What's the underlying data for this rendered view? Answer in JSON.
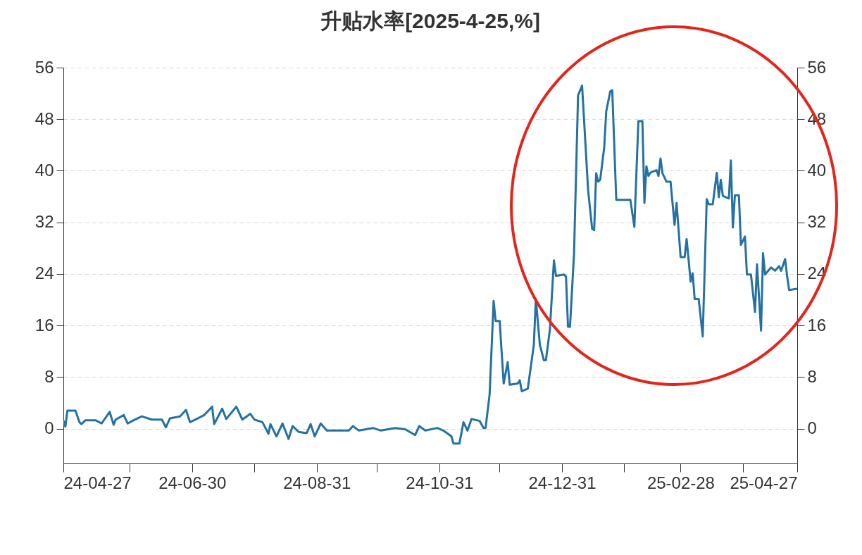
{
  "chart_data": {
    "type": "line",
    "title": "升贴水率[2025-4-25,%]",
    "x": [
      "2024-04-27",
      "2024-04-28",
      "2024-04-29",
      "2024-05-03",
      "2024-05-05",
      "2024-05-06",
      "2024-05-08",
      "2024-05-13",
      "2024-05-16",
      "2024-05-20",
      "2024-05-22",
      "2024-05-23",
      "2024-05-27",
      "2024-05-29",
      "2024-06-01",
      "2024-06-05",
      "2024-06-10",
      "2024-06-15",
      "2024-06-17",
      "2024-06-19",
      "2024-06-24",
      "2024-06-27",
      "2024-06-29",
      "2024-07-03",
      "2024-07-06",
      "2024-07-10",
      "2024-07-11",
      "2024-07-15",
      "2024-07-17",
      "2024-07-22",
      "2024-07-25",
      "2024-07-29",
      "2024-07-31",
      "2024-08-04",
      "2024-08-07",
      "2024-08-08",
      "2024-08-11",
      "2024-08-14",
      "2024-08-17",
      "2024-08-19",
      "2024-08-22",
      "2024-08-26",
      "2024-08-28",
      "2024-08-30",
      "2024-09-02",
      "2024-09-05",
      "2024-09-09",
      "2024-09-16",
      "2024-09-18",
      "2024-09-21",
      "2024-09-28",
      "2024-10-02",
      "2024-10-09",
      "2024-10-14",
      "2024-10-19",
      "2024-10-21",
      "2024-10-24",
      "2024-10-30",
      "2024-11-02",
      "2024-11-06",
      "2024-11-07",
      "2024-11-10",
      "2024-11-12",
      "2024-11-14",
      "2024-11-16",
      "2024-11-20",
      "2024-11-22",
      "2024-11-23",
      "2024-11-25",
      "2024-11-27",
      "2024-11-28",
      "2024-11-30",
      "2024-12-02",
      "2024-12-04",
      "2024-12-05",
      "2024-12-09",
      "2024-12-10",
      "2024-12-11",
      "2024-12-14",
      "2024-12-17",
      "2024-12-18",
      "2024-12-20",
      "2024-12-22",
      "2024-12-23",
      "2024-12-25",
      "2024-12-27",
      "2024-12-28",
      "2025-01-01",
      "2025-01-02",
      "2025-01-03",
      "2025-01-04",
      "2025-01-06",
      "2025-01-08",
      "2025-01-10",
      "2025-01-13",
      "2025-01-15",
      "2025-01-16",
      "2025-01-17",
      "2025-01-18",
      "2025-01-19",
      "2025-01-21",
      "2025-01-22",
      "2025-01-24",
      "2025-01-25",
      "2025-01-27",
      "2025-02-03",
      "2025-02-05",
      "2025-02-07",
      "2025-02-09",
      "2025-02-10",
      "2025-02-11",
      "2025-02-12",
      "2025-02-13",
      "2025-02-16",
      "2025-02-17",
      "2025-02-18",
      "2025-02-19",
      "2025-02-21",
      "2025-02-23",
      "2025-02-25",
      "2025-02-26",
      "2025-02-28",
      "2025-03-02",
      "2025-03-03",
      "2025-03-05",
      "2025-03-06",
      "2025-03-07",
      "2025-03-09",
      "2025-03-11",
      "2025-03-13",
      "2025-03-14",
      "2025-03-16",
      "2025-03-18",
      "2025-03-19",
      "2025-03-20",
      "2025-03-21",
      "2025-03-24",
      "2025-03-25",
      "2025-03-26",
      "2025-03-27",
      "2025-03-29",
      "2025-03-30",
      "2025-04-01",
      "2025-04-02",
      "2025-04-04",
      "2025-04-06",
      "2025-04-07",
      "2025-04-09",
      "2025-04-10",
      "2025-04-11",
      "2025-04-14",
      "2025-04-16",
      "2025-04-18",
      "2025-04-19",
      "2025-04-21",
      "2025-04-22",
      "2025-04-23",
      "2025-04-27"
    ],
    "series": [
      {
        "color": "#2471a3",
        "values": [
          1.3,
          0.3,
          2.8,
          2.8,
          1.0,
          0.7,
          1.3,
          1.3,
          0.8,
          2.6,
          0.6,
          1.4,
          2.1,
          0.8,
          1.3,
          1.9,
          1.4,
          1.4,
          0.2,
          1.6,
          1.9,
          2.9,
          1.0,
          1.6,
          2.1,
          3.4,
          0.7,
          3.1,
          1.5,
          3.4,
          1.4,
          2.3,
          1.4,
          1.0,
          -0.8,
          0.7,
          -1.2,
          0.8,
          -1.6,
          0.4,
          -0.5,
          -0.7,
          0.7,
          -1.2,
          0.8,
          -0.3,
          -0.3,
          -0.3,
          0.4,
          -0.3,
          0.1,
          -0.3,
          0.1,
          -0.1,
          -1.0,
          0.4,
          -0.3,
          0.1,
          -0.3,
          -1.2,
          -2.3,
          -2.3,
          1.0,
          -0.3,
          1.5,
          1.2,
          0.1,
          0.1,
          5.3,
          19.8,
          16.7,
          16.7,
          7.0,
          10.3,
          6.8,
          7.0,
          7.5,
          5.8,
          6.2,
          13.0,
          20.1,
          13.0,
          10.6,
          10.6,
          15.4,
          26.1,
          23.7,
          23.9,
          23.6,
          15.8,
          15.8,
          27.2,
          51.7,
          53.2,
          37.0,
          31.0,
          30.8,
          39.6,
          38.3,
          38.6,
          43.6,
          49.2,
          52.3,
          52.5,
          35.5,
          35.5,
          31.3,
          47.7,
          47.7,
          35.0,
          40.7,
          39.2,
          39.7,
          40.1,
          39.2,
          41.9,
          39.6,
          38.3,
          38.3,
          31.6,
          35.0,
          26.6,
          26.6,
          29.4,
          22.8,
          24.1,
          20.1,
          20.1,
          14.3,
          35.6,
          34.8,
          34.8,
          39.7,
          35.9,
          38.6,
          36.1,
          35.7,
          41.6,
          31.2,
          36.2,
          36.2,
          28.5,
          29.8,
          23.9,
          23.9,
          18.1,
          25.5,
          15.2,
          27.2,
          23.9,
          25.0,
          24.5,
          25.2,
          24.5,
          26.3,
          23.6,
          21.5,
          21.7
        ]
      }
    ],
    "xlim": [
      "2024-04-27",
      "2025-04-27"
    ],
    "xticks": [
      {
        "value": "2024-04-27",
        "label": "24-04-27"
      },
      {
        "value": "2024-05-30",
        "label": null
      },
      {
        "value": "2024-06-30",
        "label": "24-06-30"
      },
      {
        "value": "2024-07-31",
        "label": null
      },
      {
        "value": "2024-08-31",
        "label": "24-08-31"
      },
      {
        "value": "2024-09-30",
        "label": null
      },
      {
        "value": "2024-10-31",
        "label": "24-10-31"
      },
      {
        "value": "2024-11-30",
        "label": null
      },
      {
        "value": "2024-12-31",
        "label": "24-12-31"
      },
      {
        "value": "2025-01-31",
        "label": null
      },
      {
        "value": "2025-02-28",
        "label": "25-02-28"
      },
      {
        "value": "2025-03-31",
        "label": null
      },
      {
        "value": "2025-04-27",
        "label": "25-04-27"
      }
    ],
    "ylim": [
      -5.4,
      56
    ],
    "yticks": [
      0,
      8,
      16,
      24,
      32,
      40,
      48,
      56
    ],
    "y2lim": [
      -5.4,
      56
    ],
    "y2ticks": [
      0,
      8,
      16,
      24,
      32,
      40,
      48,
      56
    ],
    "grid": "y"
  }
}
